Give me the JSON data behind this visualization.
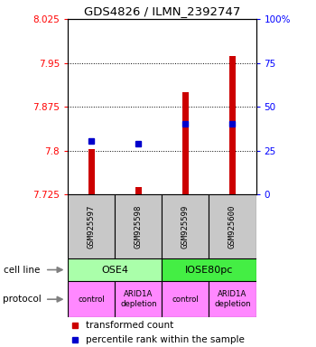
{
  "title": "GDS4826 / ILMN_2392747",
  "samples": [
    "GSM925597",
    "GSM925598",
    "GSM925599",
    "GSM925600"
  ],
  "red_bar_values": [
    7.803,
    7.737,
    7.9,
    7.961
  ],
  "blue_dot_values": [
    7.816,
    7.812,
    7.845,
    7.845
  ],
  "ylim_left": [
    7.725,
    8.025
  ],
  "yticks_left": [
    7.725,
    7.8,
    7.875,
    7.95,
    8.025
  ],
  "ytick_labels_left": [
    "7.725",
    "7.8",
    "7.875",
    "7.95",
    "8.025"
  ],
  "ylim_right": [
    0,
    100
  ],
  "yticks_right": [
    0,
    25,
    50,
    75,
    100
  ],
  "ytick_labels_right": [
    "0",
    "25",
    "50",
    "75",
    "100%"
  ],
  "cell_line_info": [
    {
      "label": "OSE4",
      "color": "#AAFFAA",
      "span": [
        0,
        2
      ]
    },
    {
      "label": "IOSE80pc",
      "color": "#44EE44",
      "span": [
        2,
        4
      ]
    }
  ],
  "protocol_labels": [
    "control",
    "ARID1A\ndepletion",
    "control",
    "ARID1A\ndepletion"
  ],
  "protocol_color": "#FF88FF",
  "bar_color": "#CC0000",
  "dot_color": "#0000CC",
  "sample_box_color": "#C8C8C8",
  "legend_red_label": "transformed count",
  "legend_blue_label": "percentile rank within the sample",
  "cell_line_row_label": "cell line",
  "protocol_row_label": "protocol",
  "bar_bottom": 7.725
}
